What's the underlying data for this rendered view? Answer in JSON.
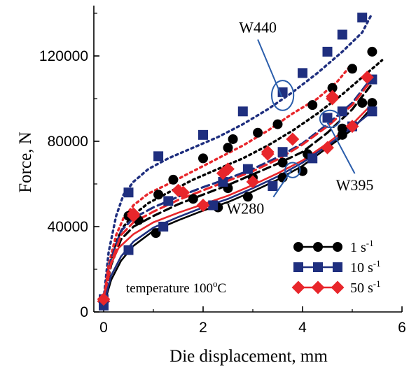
{
  "chart_data": {
    "type": "line",
    "xlabel": "Die displacement, mm",
    "ylabel": "Force, N",
    "xlim": [
      -0.2,
      6
    ],
    "ylim": [
      0,
      140000
    ],
    "xticks": [
      "0",
      "2",
      "4",
      "6"
    ],
    "yticks": [
      "0",
      "40000",
      "80000",
      "120000"
    ],
    "xtick_values": [
      0,
      2,
      4,
      6
    ],
    "ytick_values": [
      0,
      40000,
      80000,
      120000
    ],
    "legend_position": "bottom-right",
    "legend": [
      {
        "label": "1 s",
        "exp": "-1",
        "marker": "circle",
        "color": "#000000"
      },
      {
        "label": "10 s",
        "exp": "-1",
        "marker": "square",
        "color": "#1f2f7f"
      },
      {
        "label": "50 s",
        "exp": "-1",
        "marker": "diamond",
        "color": "#e8262b"
      }
    ],
    "annotations": [
      {
        "text": "W440",
        "x": 3.1,
        "y": 131000,
        "target": [
          3.58,
          101000
        ],
        "ellipse": [
          3.6,
          101500,
          0.22,
          7000
        ]
      },
      {
        "text": "W395",
        "x": 5.05,
        "y": 57000,
        "target": [
          4.5,
          89000
        ],
        "ellipse": [
          4.55,
          90500,
          0.2,
          4000
        ]
      },
      {
        "text": "W280",
        "x": 2.85,
        "y": 46000,
        "target": [
          3.78,
          66500
        ],
        "ellipse": [
          3.8,
          66500,
          0.15,
          3500
        ]
      }
    ],
    "temp_label": {
      "text": "temperature 100",
      "sup": "o",
      "unit": "C"
    },
    "series": [
      {
        "name": "W440 1 s-1",
        "group": "W440",
        "rate": 1,
        "style": "dotted",
        "color": "#000000",
        "line": [
          [
            0,
            5000
          ],
          [
            0.1,
            20000
          ],
          [
            0.25,
            33000
          ],
          [
            0.4,
            40000
          ],
          [
            0.6,
            45500
          ],
          [
            0.9,
            51000
          ],
          [
            1.3,
            56000
          ],
          [
            1.8,
            62000
          ],
          [
            2.3,
            67000
          ],
          [
            2.8,
            72000
          ],
          [
            3.3,
            78000
          ],
          [
            3.8,
            85000
          ],
          [
            4.3,
            93000
          ],
          [
            4.8,
            102000
          ],
          [
            5.2,
            110000
          ],
          [
            5.6,
            118000
          ]
        ],
        "marker_x": [
          0,
          0.5,
          1.1,
          1.4,
          2.0,
          2.5,
          3.1,
          3.5,
          4.2,
          4.6,
          5.0,
          5.4
        ],
        "marker_y": [
          5000,
          45000,
          55000,
          62000,
          72000,
          77000,
          84000,
          88000,
          97000,
          105000,
          114000,
          122000
        ],
        "marker_x2": [
          2.6
        ],
        "marker_y2": [
          81000
        ]
      },
      {
        "name": "W440 10 s-1",
        "group": "W440",
        "rate": 10,
        "style": "dotted",
        "color": "#1f2f7f",
        "line": [
          [
            0,
            6000
          ],
          [
            0.1,
            28000
          ],
          [
            0.25,
            45000
          ],
          [
            0.4,
            55000
          ],
          [
            0.6,
            61000
          ],
          [
            0.9,
            67000
          ],
          [
            1.3,
            72000
          ],
          [
            1.8,
            77000
          ],
          [
            2.3,
            82000
          ],
          [
            2.8,
            88000
          ],
          [
            3.3,
            95000
          ],
          [
            3.8,
            103000
          ],
          [
            4.3,
            112000
          ],
          [
            4.8,
            122000
          ],
          [
            5.2,
            131000
          ],
          [
            5.4,
            140000
          ]
        ],
        "marker_x": [
          0,
          0.5,
          1.1,
          2.0,
          2.8,
          3.6,
          4.0,
          4.5,
          4.8,
          5.2
        ],
        "marker_y": [
          6000,
          56000,
          73000,
          83000,
          94000,
          103000,
          112000,
          122000,
          130000,
          138000
        ]
      },
      {
        "name": "W440 50 s-1",
        "group": "W440",
        "rate": 50,
        "style": "dotted",
        "color": "#e8262b",
        "line": [
          [
            0,
            5000
          ],
          [
            0.1,
            22000
          ],
          [
            0.25,
            36000
          ],
          [
            0.4,
            44000
          ],
          [
            0.6,
            50000
          ],
          [
            0.9,
            55500
          ],
          [
            1.3,
            60000
          ],
          [
            1.8,
            66000
          ],
          [
            2.3,
            72000
          ],
          [
            2.8,
            78000
          ],
          [
            3.3,
            85000
          ],
          [
            3.8,
            93000
          ],
          [
            4.3,
            100000
          ],
          [
            4.7,
            108000
          ],
          [
            4.95,
            115000
          ]
        ],
        "marker_x": [
          0,
          0.6,
          1.5,
          2.5,
          3.3,
          4.6
        ],
        "marker_y": [
          5000,
          46000,
          57000,
          67000,
          75000,
          101000
        ]
      },
      {
        "name": "W395 1 s-1",
        "group": "W395",
        "rate": 1,
        "style": "dashed",
        "color": "#000000",
        "line": [
          [
            0,
            4000
          ],
          [
            0.15,
            22000
          ],
          [
            0.35,
            34000
          ],
          [
            0.6,
            40000
          ],
          [
            1.0,
            45000
          ],
          [
            1.5,
            50500
          ],
          [
            2.0,
            55000
          ],
          [
            2.5,
            59500
          ],
          [
            3.0,
            64500
          ],
          [
            3.5,
            69500
          ],
          [
            4.0,
            75000
          ],
          [
            4.5,
            84000
          ],
          [
            5.0,
            95000
          ],
          [
            5.4,
            107000
          ]
        ],
        "marker_x": [
          0.7,
          1.8,
          2.5,
          3.0,
          3.6,
          4.1,
          4.8,
          5.2
        ],
        "marker_y": [
          43000,
          53000,
          58000,
          63000,
          70000,
          74000,
          86000,
          98000
        ]
      },
      {
        "name": "W395 10 s-1",
        "group": "W395",
        "rate": 10,
        "style": "dashed",
        "color": "#1f2f7f",
        "line": [
          [
            0,
            4500
          ],
          [
            0.15,
            25000
          ],
          [
            0.35,
            38000
          ],
          [
            0.6,
            44000
          ],
          [
            1.0,
            49000
          ],
          [
            1.5,
            54000
          ],
          [
            2.0,
            58500
          ],
          [
            2.5,
            62500
          ],
          [
            3.0,
            67000
          ],
          [
            3.5,
            72500
          ],
          [
            4.0,
            79000
          ],
          [
            4.5,
            88000
          ],
          [
            5.0,
            98000
          ],
          [
            5.4,
            110000
          ]
        ],
        "marker_x": [
          1.3,
          2.4,
          2.9,
          3.6,
          4.5,
          4.8,
          5.4
        ],
        "marker_y": [
          52000,
          61000,
          67000,
          75000,
          91000,
          94000,
          109000
        ]
      },
      {
        "name": "W395 50 s-1",
        "group": "W395",
        "rate": 50,
        "style": "dashed",
        "color": "#e8262b",
        "line": [
          [
            0,
            4000
          ],
          [
            0.15,
            23000
          ],
          [
            0.35,
            36000
          ],
          [
            0.6,
            42000
          ],
          [
            1.0,
            47000
          ],
          [
            1.5,
            52500
          ],
          [
            2.0,
            57000
          ],
          [
            2.5,
            61500
          ],
          [
            3.0,
            66000
          ],
          [
            3.5,
            71500
          ],
          [
            4.0,
            78500
          ],
          [
            4.5,
            87000
          ],
          [
            5.0,
            97000
          ],
          [
            5.4,
            109000
          ]
        ],
        "marker_x": [
          0.6,
          1.6,
          2.4,
          3.3,
          3.8,
          4.6,
          5.3
        ],
        "marker_y": [
          45000,
          56000,
          65000,
          74000,
          81000,
          100000,
          110000
        ]
      },
      {
        "name": "W280 1 s-1",
        "group": "W280",
        "rate": 1,
        "style": "solid",
        "color": "#000000",
        "line": [
          [
            0,
            3000
          ],
          [
            0.15,
            15000
          ],
          [
            0.35,
            24000
          ],
          [
            0.6,
            31000
          ],
          [
            1.0,
            38000
          ],
          [
            1.5,
            43000
          ],
          [
            2.0,
            47500
          ],
          [
            2.5,
            51500
          ],
          [
            3.0,
            56500
          ],
          [
            3.5,
            62000
          ],
          [
            4.0,
            68500
          ],
          [
            4.5,
            77000
          ],
          [
            5.0,
            85500
          ],
          [
            5.4,
            96000
          ]
        ],
        "marker_x": [
          1.05,
          2.3,
          2.9,
          3.6,
          4.0,
          4.8,
          5.4
        ],
        "marker_y": [
          37000,
          49000,
          54000,
          63000,
          66000,
          83000,
          98000
        ]
      },
      {
        "name": "W280 10 s-1",
        "group": "W280",
        "rate": 10,
        "style": "solid",
        "color": "#1f2f7f",
        "line": [
          [
            0,
            3500
          ],
          [
            0.15,
            17000
          ],
          [
            0.35,
            26000
          ],
          [
            0.6,
            33000
          ],
          [
            1.0,
            39500
          ],
          [
            1.5,
            44500
          ],
          [
            2.0,
            49000
          ],
          [
            2.5,
            53000
          ],
          [
            3.0,
            58000
          ],
          [
            3.5,
            63500
          ],
          [
            4.0,
            70000
          ],
          [
            4.5,
            78000
          ],
          [
            5.0,
            86500
          ],
          [
            5.4,
            94000
          ]
        ],
        "marker_x": [
          0,
          0.5,
          1.2,
          2.2,
          3.4,
          4.2,
          5.0,
          5.4
        ],
        "marker_y": [
          3000,
          29000,
          40000,
          50000,
          59000,
          72000,
          87000,
          94000
        ]
      },
      {
        "name": "W280 50 s-1",
        "group": "W280",
        "rate": 50,
        "style": "solid",
        "color": "#e8262b",
        "line": [
          [
            0,
            6000
          ],
          [
            0.1,
            20000
          ],
          [
            0.3,
            30000
          ],
          [
            0.6,
            36500
          ],
          [
            1.0,
            42000
          ],
          [
            1.5,
            46500
          ],
          [
            2.0,
            50500
          ],
          [
            2.5,
            54500
          ],
          [
            3.0,
            59500
          ],
          [
            3.5,
            65000
          ],
          [
            4.0,
            71000
          ],
          [
            4.5,
            79000
          ],
          [
            5.0,
            88000
          ],
          [
            5.4,
            97500
          ]
        ],
        "marker_x": [
          0,
          1.6,
          2.0,
          3.0,
          4.5,
          5.0
        ],
        "marker_y": [
          6000,
          56000,
          50000,
          61000,
          77000,
          87000
        ]
      }
    ]
  }
}
